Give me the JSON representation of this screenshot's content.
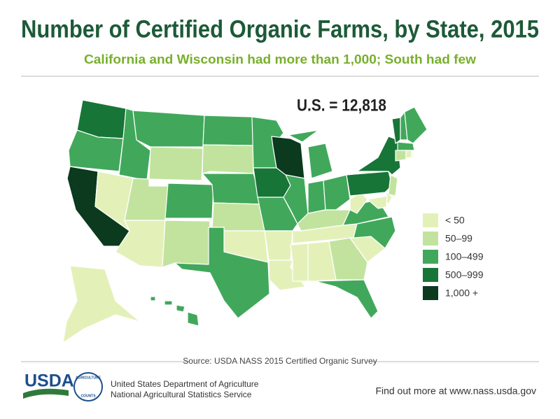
{
  "header": {
    "title": "Number of Certified Organic Farms, by State, 2015",
    "subtitle": "California and Wisconsin had  more than 1,000; South had few"
  },
  "map": {
    "total_label": "U.S. = 12,818",
    "legend": [
      {
        "label": "< 50",
        "color": "#e3f1b9"
      },
      {
        "label": "50–99",
        "color": "#c2e39e"
      },
      {
        "label": "100–499",
        "color": "#41a85b"
      },
      {
        "label": "500–999",
        "color": "#177537"
      },
      {
        "label": "1,000 +",
        "color": "#0b3a1e"
      }
    ]
  },
  "footer": {
    "source": "Source: USDA NASS 2015 Certified Organic Survey",
    "logo": "USDA",
    "seal_top": "AGRICULTURE",
    "seal_bottom": "COUNTS",
    "agency_line1": "United States Department of Agriculture",
    "agency_line2": "National Agricultural Statistics Service",
    "link": "Find out more at www.nass.usda.gov"
  }
}
